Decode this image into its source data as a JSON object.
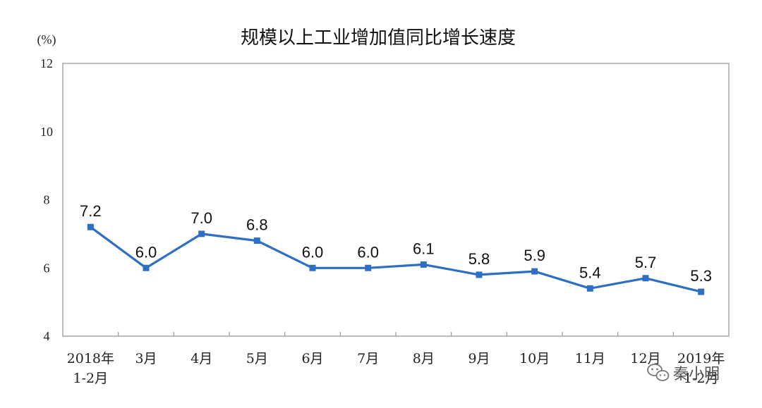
{
  "chart_data": {
    "type": "line",
    "title": "规模以上工业增加值同比增长速度",
    "ylabel": "(%)",
    "ylim": [
      4,
      12
    ],
    "yticks": [
      "4",
      "6",
      "8",
      "10",
      "12"
    ],
    "categories": [
      [
        "2018年",
        "1-2月"
      ],
      [
        "3月"
      ],
      [
        "4月"
      ],
      [
        "5月"
      ],
      [
        "6月"
      ],
      [
        "7月"
      ],
      [
        "8月"
      ],
      [
        "9月"
      ],
      [
        "10月"
      ],
      [
        "11月"
      ],
      [
        "12月"
      ],
      [
        "2019年",
        "1-2月"
      ]
    ],
    "series": [
      {
        "color": "#2e6fc4",
        "values": [
          7.2,
          6.0,
          7.0,
          6.8,
          6.0,
          6.0,
          6.1,
          5.8,
          5.9,
          5.4,
          5.7,
          5.3
        ],
        "labels": [
          "7.2",
          "6.0",
          "7.0",
          "6.8",
          "6.0",
          "6.0",
          "6.1",
          "5.8",
          "5.9",
          "5.4",
          "5.7",
          "5.3"
        ]
      }
    ],
    "grid": false,
    "legend": "none"
  },
  "watermark": {
    "text": "秦小明",
    "icon": "wechat-icon"
  }
}
